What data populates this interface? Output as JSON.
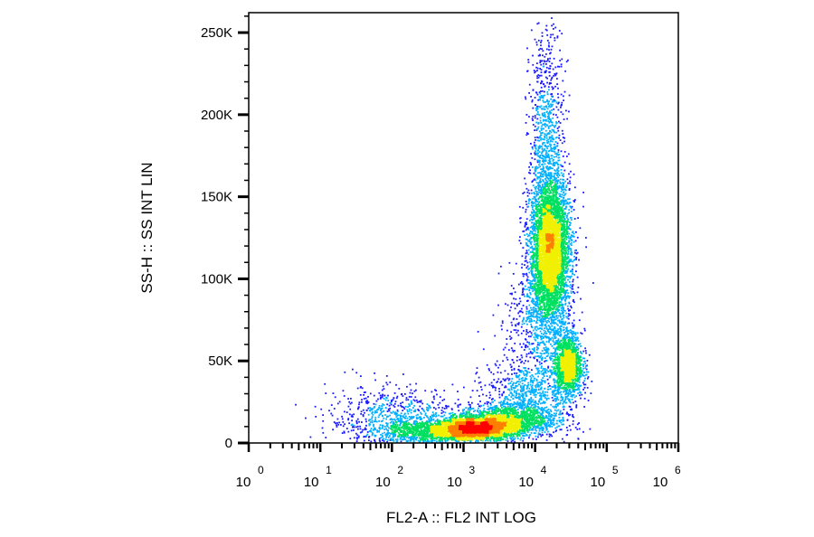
{
  "chart_data": {
    "type": "scatter",
    "subtype": "flow-cytometry-density-dot-plot",
    "title": "",
    "xlabel": "FL2-A :: FL2 INT LOG",
    "ylabel": "SS-H :: SS INT LIN",
    "x_scale": "log",
    "x_range_decades": [
      0,
      6
    ],
    "x_tick_base": "10",
    "x_ticks": [
      {
        "exponent": "0"
      },
      {
        "exponent": "1"
      },
      {
        "exponent": "2"
      },
      {
        "exponent": "3"
      },
      {
        "exponent": "4"
      },
      {
        "exponent": "5"
      },
      {
        "exponent": "6"
      }
    ],
    "y_scale": "linear",
    "ylim": [
      0,
      262144
    ],
    "y_ticks": [
      {
        "value": 0,
        "label": "0"
      },
      {
        "value": 50000,
        "label": "50K"
      },
      {
        "value": 100000,
        "label": "100K"
      },
      {
        "value": 150000,
        "label": "150K"
      },
      {
        "value": 200000,
        "label": "200K"
      },
      {
        "value": 250000,
        "label": "250K"
      }
    ],
    "color_scale": [
      "#1a1aff",
      "#00b0ff",
      "#00e060",
      "#f0f000",
      "#ff8000",
      "#ff0000"
    ],
    "populations": [
      {
        "log_x_center": 3.15,
        "y_center": 9000,
        "log_x_sd": 0.28,
        "y_sd": 3500,
        "weight": 0.2
      },
      {
        "log_x_center": 3.6,
        "y_center": 14000,
        "log_x_sd": 0.35,
        "y_sd": 5000,
        "weight": 0.1
      },
      {
        "log_x_center": 4.2,
        "y_center": 118000,
        "log_x_sd": 0.14,
        "y_sd": 22000,
        "weight": 0.32
      },
      {
        "log_x_center": 4.45,
        "y_center": 48000,
        "log_x_sd": 0.1,
        "y_sd": 10000,
        "weight": 0.1
      },
      {
        "log_x_center": 4.15,
        "y_center": 185000,
        "log_x_sd": 0.12,
        "y_sd": 35000,
        "weight": 0.06
      },
      {
        "log_x_center": 2.0,
        "y_center": 15000,
        "log_x_sd": 0.45,
        "y_sd": 10000,
        "weight": 0.05
      },
      {
        "log_x_center": 2.5,
        "y_center": 7000,
        "log_x_sd": 0.35,
        "y_sd": 4000,
        "weight": 0.07
      },
      {
        "log_x_center": 3.9,
        "y_center": 30000,
        "log_x_sd": 0.3,
        "y_sd": 12000,
        "weight": 0.06
      },
      {
        "log_x_center": 4.05,
        "y_center": 75000,
        "log_x_sd": 0.22,
        "y_sd": 18000,
        "weight": 0.04
      }
    ]
  }
}
